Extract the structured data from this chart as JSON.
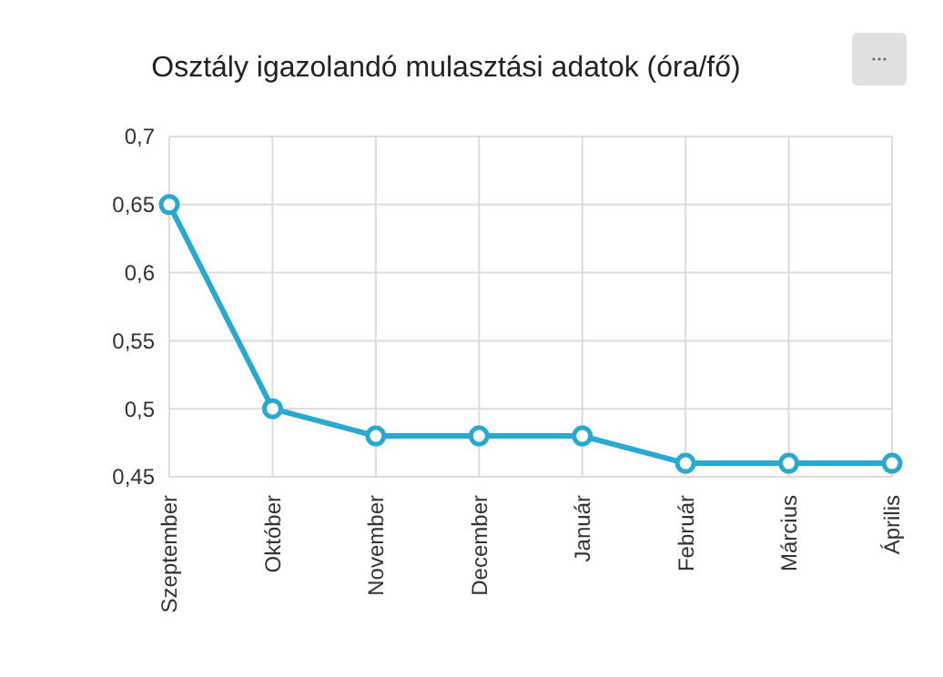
{
  "chart_data": {
    "type": "line",
    "title": "Osztály igazolandó mulasztási adatok (óra/fő)",
    "categories": [
      "Szeptember",
      "Október",
      "November",
      "December",
      "Január",
      "Február",
      "Március",
      "Április"
    ],
    "series": [
      {
        "color": "#29a9d0",
        "values": [
          0.65,
          0.5,
          0.48,
          0.48,
          0.48,
          0.46,
          0.46,
          0.46
        ]
      }
    ],
    "ylim": [
      0.45,
      0.7
    ],
    "yticks": [
      {
        "value": 0.45,
        "label": "0,45"
      },
      {
        "value": 0.5,
        "label": "0,5"
      },
      {
        "value": 0.55,
        "label": "0,55"
      },
      {
        "value": 0.6,
        "label": "0,6"
      },
      {
        "value": 0.65,
        "label": "0,65"
      },
      {
        "value": 0.7,
        "label": "0,7"
      }
    ],
    "grid": true,
    "marker": "circle",
    "line_style": "solid"
  }
}
